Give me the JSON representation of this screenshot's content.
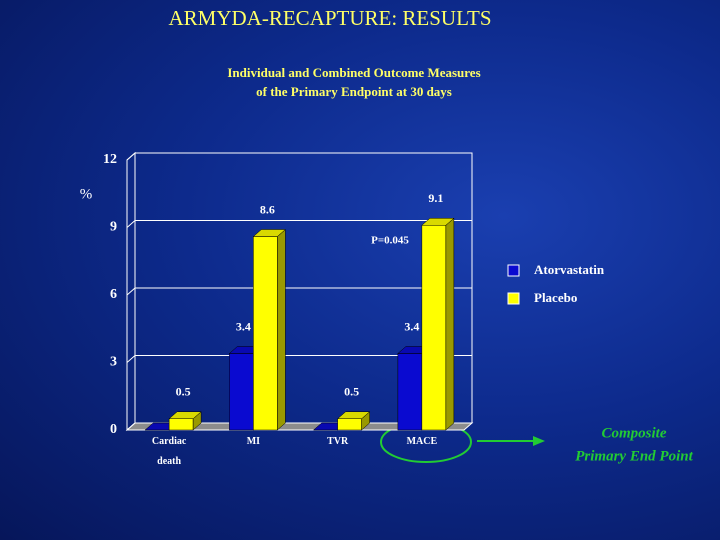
{
  "chart_data": {
    "type": "bar3d",
    "title": "ARMYDA-RECAPTURE: RESULTS",
    "subtitle": [
      "Individual and Combined Outcome Measures",
      "of the Primary Endpoint  at 30 days"
    ],
    "y_label": "%",
    "categories": [
      "Cardiac death",
      "MI",
      "TVR",
      "MACE"
    ],
    "series": [
      {
        "name": "Atorvastatin",
        "color": "#0a0ad0",
        "values": [
          0,
          3.4,
          0,
          3.4
        ]
      },
      {
        "name": "Placebo",
        "color": "#ffff00",
        "values": [
          0.5,
          8.6,
          0.5,
          9.1
        ]
      }
    ],
    "ylim": [
      0,
      12
    ],
    "yticks": [
      0,
      3,
      6,
      9,
      12
    ],
    "grid": true,
    "annotations": [
      "P=0.045"
    ],
    "callout": [
      "Composite",
      "Primary End Point"
    ]
  }
}
